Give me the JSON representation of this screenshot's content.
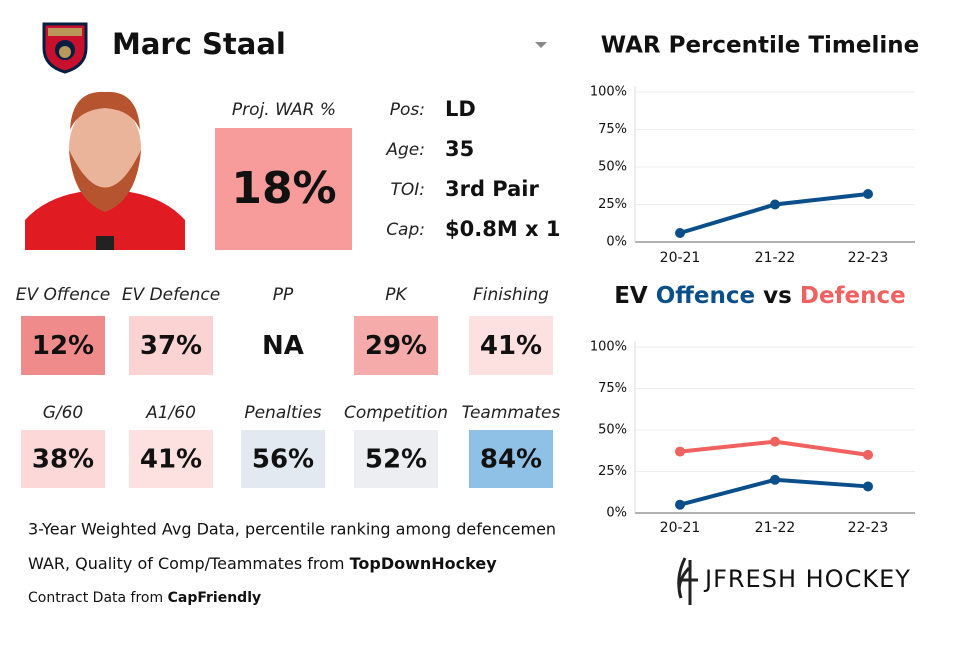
{
  "header": {
    "name": "Marc Staal"
  },
  "proj_war": {
    "label": "Proj. WAR %",
    "value": "18%",
    "color": "#f79b9b"
  },
  "bio": [
    {
      "label": "Pos:",
      "value": "LD"
    },
    {
      "label": "Age:",
      "value": "35"
    },
    {
      "label": "TOI:",
      "value": "3rd Pair"
    },
    {
      "label": "Cap:",
      "value": "$0.8M x 1"
    }
  ],
  "tiles": [
    {
      "label": "EV Offence",
      "value": "12%",
      "color": "#f08b8b"
    },
    {
      "label": "EV Defence",
      "value": "37%",
      "color": "#fbd3d3"
    },
    {
      "label": "PP",
      "value": "NA",
      "color": "#ffffff"
    },
    {
      "label": "PK",
      "value": "29%",
      "color": "#f6abab"
    },
    {
      "label": "Finishing",
      "value": "41%",
      "color": "#fde0e0"
    },
    {
      "label": "G/60",
      "value": "38%",
      "color": "#fdd8d8"
    },
    {
      "label": "A1/60",
      "value": "41%",
      "color": "#fde0e0"
    },
    {
      "label": "Penalties",
      "value": "56%",
      "color": "#e3e9f1"
    },
    {
      "label": "Competition",
      "value": "52%",
      "color": "#eceef2"
    },
    {
      "label": "Teammates",
      "value": "84%",
      "color": "#8fc0e6"
    }
  ],
  "footer": {
    "line1": "3-Year Weighted Avg Data, percentile ranking among defencemen",
    "line2_text": "WAR, Quality of Comp/Teammates from",
    "line2_source": "TopDownHockey",
    "line3_text": "Contract Data from",
    "line3_source": "CapFriendly"
  },
  "brand": "JFRESH HOCKEY",
  "chart_data": [
    {
      "type": "line",
      "title": "WAR Percentile Timeline",
      "categories": [
        "20-21",
        "21-22",
        "22-23"
      ],
      "series": [
        {
          "color": "#0b4f8a",
          "values": [
            6,
            25,
            32
          ]
        }
      ],
      "ylim": [
        0,
        100
      ],
      "yticks": [
        {
          "value": 0,
          "label": "0%"
        },
        {
          "value": 25,
          "label": "25%"
        },
        {
          "value": 50,
          "label": "50%"
        },
        {
          "value": 75,
          "label": "75%"
        },
        {
          "value": 100,
          "label": "100%"
        }
      ],
      "grid": true
    },
    {
      "type": "line",
      "title_prefix": "EV",
      "title_joiner": "vs",
      "categories": [
        "20-21",
        "21-22",
        "22-23"
      ],
      "series": [
        {
          "name": "Offence",
          "color": "#0b4f8a",
          "values": [
            5,
            20,
            16
          ]
        },
        {
          "name": "Defence",
          "color": "#f0615f",
          "values": [
            37,
            43,
            35
          ]
        }
      ],
      "ylim": [
        0,
        100
      ],
      "yticks": [
        {
          "value": 0,
          "label": "0%"
        },
        {
          "value": 25,
          "label": "25%"
        },
        {
          "value": 50,
          "label": "50%"
        },
        {
          "value": 75,
          "label": "75%"
        },
        {
          "value": 100,
          "label": "100%"
        }
      ],
      "grid": true
    }
  ]
}
